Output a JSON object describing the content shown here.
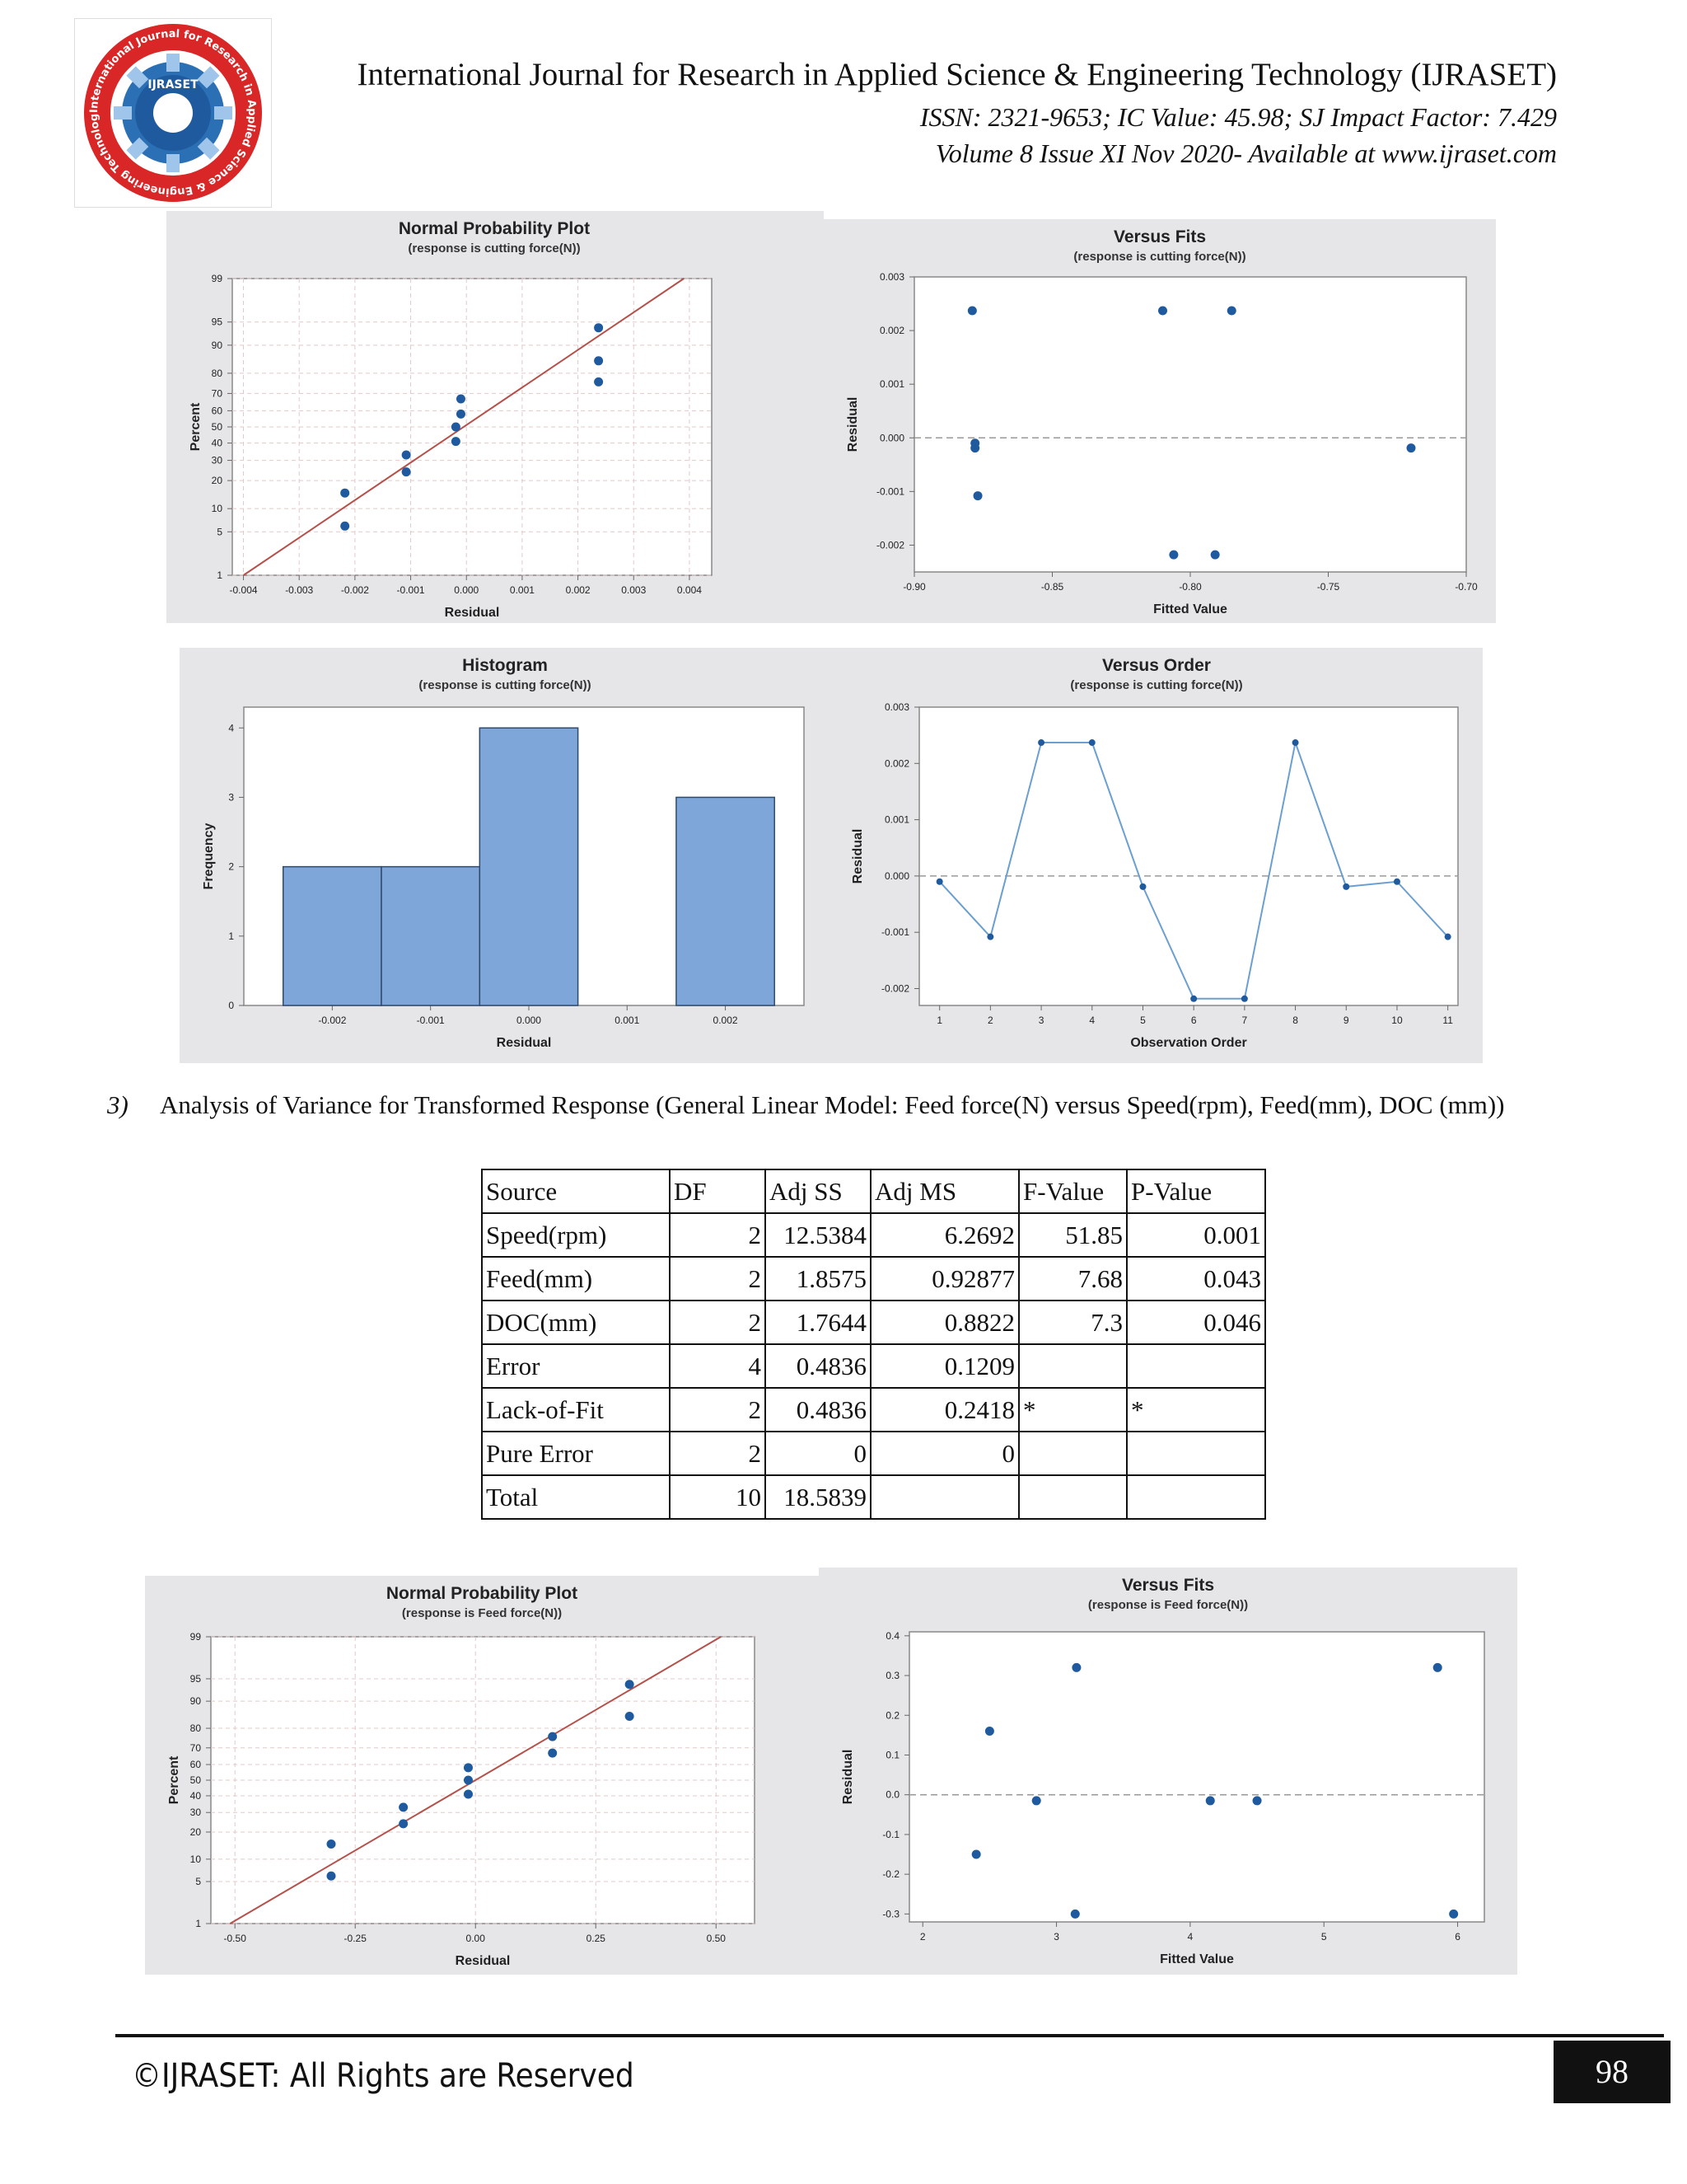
{
  "header": {
    "journal_title": "International Journal for Research in Applied Science & Engineering Technology (IJRASET)",
    "issn_line": "ISSN: 2321-9653; IC Value: 45.98; SJ Impact Factor: 7.429",
    "volume_line": "Volume 8 Issue XI Nov 2020- Available at www.ijraset.com",
    "logo_icon": "ijraset-seal-icon",
    "logo_outer_text": "International Journal for Research in Applied Science & Engineering Technology",
    "logo_inner_text": "IJRASET"
  },
  "section": {
    "number": "3)",
    "text": "Analysis of Variance for Transformed Response (General Linear Model: Feed force(N) versus Speed(rpm), Feed(mm), DOC (mm))"
  },
  "anova_table": {
    "headers": [
      "Source",
      "DF",
      "Adj SS",
      "Adj MS",
      "F-Value",
      "P-Value"
    ],
    "rows": [
      [
        "Speed(rpm)",
        "2",
        "12.5384",
        "6.2692",
        "51.85",
        "0.001"
      ],
      [
        "Feed(mm)",
        "2",
        "1.8575",
        "0.92877",
        "7.68",
        "0.043"
      ],
      [
        "DOC(mm)",
        "2",
        "1.7644",
        "0.8822",
        "7.3",
        "0.046"
      ],
      [
        "Error",
        "4",
        "0.4836",
        "0.1209",
        "",
        ""
      ],
      [
        "Lack-of-Fit",
        "2",
        "0.4836",
        "0.2418",
        "*",
        "*"
      ],
      [
        "Pure Error",
        "2",
        "0",
        "0",
        "",
        ""
      ],
      [
        "Total",
        "10",
        "18.5839",
        "",
        "",
        ""
      ]
    ]
  },
  "footer": {
    "copyright": "©IJRASET: All Rights are Reserved",
    "page_number": "98"
  },
  "colors": {
    "panel_bg": "#e6e6e9",
    "point": "#1f5a9e",
    "fit_line": "#b5504a",
    "bar_fill": "#7ea6d9",
    "order_line": "#6b9fd0"
  },
  "chart_data": [
    {
      "id": "npp1",
      "type": "scatter",
      "title": "Normal Probability Plot",
      "subtitle": "(response is cutting force(N))",
      "xlabel": "Residual",
      "ylabel": "Percent",
      "xlim": [
        -0.0042,
        0.0044
      ],
      "ylim_percent": [
        1,
        99
      ],
      "scale": "normal-probability",
      "xticks": [
        -0.004,
        -0.003,
        -0.002,
        -0.001,
        0.0,
        0.001,
        0.002,
        0.003,
        0.004
      ],
      "xtick_labels": [
        "-0.004",
        "-0.003",
        "-0.002",
        "-0.001",
        "0.000",
        "0.001",
        "0.002",
        "0.003",
        "0.004"
      ],
      "yticks": [
        1,
        5,
        10,
        20,
        30,
        40,
        50,
        60,
        70,
        80,
        90,
        95,
        99
      ],
      "ytick_labels": [
        "1",
        "5",
        "10",
        "20",
        "30",
        "40",
        "50",
        "60",
        "70",
        "80",
        "90",
        "95",
        "99"
      ],
      "points": [
        {
          "x": -0.00218,
          "y": 6
        },
        {
          "x": -0.00218,
          "y": 15
        },
        {
          "x": -0.00108,
          "y": 24
        },
        {
          "x": -0.00108,
          "y": 33
        },
        {
          "x": -0.00019,
          "y": 41
        },
        {
          "x": -0.00019,
          "y": 50
        },
        {
          "x": -0.0001,
          "y": 58
        },
        {
          "x": -0.0001,
          "y": 67
        },
        {
          "x": 0.00237,
          "y": 76
        },
        {
          "x": 0.00237,
          "y": 85
        },
        {
          "x": 0.00237,
          "y": 94
        }
      ],
      "fit_line": {
        "x0": -0.004,
        "y0": 1,
        "x1": 0.0039,
        "y1": 99
      }
    },
    {
      "id": "fits1",
      "type": "scatter",
      "title": "Versus Fits",
      "subtitle": "(response is cutting force(N))",
      "xlabel": "Fitted Value",
      "ylabel": "Residual",
      "xlim": [
        -0.9,
        -0.7
      ],
      "ylim": [
        -0.0025,
        0.003
      ],
      "xticks": [
        -0.9,
        -0.85,
        -0.8,
        -0.75,
        -0.7
      ],
      "xtick_labels": [
        "-0.90",
        "-0.85",
        "-0.80",
        "-0.75",
        "-0.70"
      ],
      "yticks": [
        -0.002,
        -0.001,
        0.0,
        0.001,
        0.002,
        0.003
      ],
      "ytick_labels": [
        "-0.002",
        "-0.001",
        "0.000",
        "0.001",
        "0.002",
        "0.003"
      ],
      "ref_line_y": 0,
      "points": [
        {
          "x": -0.879,
          "y": 0.00237
        },
        {
          "x": -0.878,
          "y": -0.0001
        },
        {
          "x": -0.878,
          "y": -0.00019
        },
        {
          "x": -0.877,
          "y": -0.00108
        },
        {
          "x": -0.81,
          "y": 0.00237
        },
        {
          "x": -0.806,
          "y": -0.00218
        },
        {
          "x": -0.791,
          "y": -0.00218
        },
        {
          "x": -0.785,
          "y": 0.00237
        },
        {
          "x": -0.72,
          "y": -0.00019
        }
      ]
    },
    {
      "id": "hist1",
      "type": "bar",
      "title": "Histogram",
      "subtitle": "(response is cutting force(N))",
      "xlabel": "Residual",
      "ylabel": "Frequency",
      "xlim": [
        -0.0029,
        0.0028
      ],
      "ylim": [
        0,
        4.3
      ],
      "xticks": [
        -0.002,
        -0.001,
        0.0,
        0.001,
        0.002
      ],
      "xtick_labels": [
        "-0.002",
        "-0.001",
        "0.000",
        "0.001",
        "0.002"
      ],
      "yticks": [
        0,
        1,
        2,
        3,
        4
      ],
      "ytick_labels": [
        "0",
        "1",
        "2",
        "3",
        "4"
      ],
      "bins": [
        {
          "from": -0.0025,
          "to": -0.0015,
          "count": 2
        },
        {
          "from": -0.0015,
          "to": -0.0005,
          "count": 2
        },
        {
          "from": -0.0005,
          "to": 0.0005,
          "count": 4
        },
        {
          "from": 0.0005,
          "to": 0.0015,
          "count": 0
        },
        {
          "from": 0.0015,
          "to": 0.0025,
          "count": 3
        }
      ]
    },
    {
      "id": "order1",
      "type": "line",
      "title": "Versus Order",
      "subtitle": "(response is cutting force(N))",
      "xlabel": "Observation Order",
      "ylabel": "Residual",
      "xlim": [
        0.6,
        11.2
      ],
      "ylim": [
        -0.0023,
        0.003
      ],
      "xticks": [
        1,
        2,
        3,
        4,
        5,
        6,
        7,
        8,
        9,
        10,
        11
      ],
      "xtick_labels": [
        "1",
        "2",
        "3",
        "4",
        "5",
        "6",
        "7",
        "8",
        "9",
        "10",
        "11"
      ],
      "yticks": [
        -0.002,
        -0.001,
        0.0,
        0.001,
        0.002,
        0.003
      ],
      "ytick_labels": [
        "-0.002",
        "-0.001",
        "0.000",
        "0.001",
        "0.002",
        "0.003"
      ],
      "ref_line_y": 0,
      "x": [
        1,
        2,
        3,
        4,
        5,
        6,
        7,
        8,
        9,
        10,
        11
      ],
      "values": [
        -0.0001,
        -0.00108,
        0.00237,
        0.00237,
        -0.00019,
        -0.00218,
        -0.00218,
        0.00237,
        -0.00019,
        -0.0001,
        -0.00108
      ]
    },
    {
      "id": "npp2",
      "type": "scatter",
      "title": "Normal Probability Plot",
      "subtitle": "(response is Feed force(N))",
      "xlabel": "Residual",
      "ylabel": "Percent",
      "xlim": [
        -0.55,
        0.58
      ],
      "ylim_percent": [
        1,
        99
      ],
      "scale": "normal-probability",
      "xticks": [
        -0.5,
        -0.25,
        0.0,
        0.25,
        0.5
      ],
      "xtick_labels": [
        "-0.50",
        "-0.25",
        "0.00",
        "0.25",
        "0.50"
      ],
      "yticks": [
        1,
        5,
        10,
        20,
        30,
        40,
        50,
        60,
        70,
        80,
        90,
        95,
        99
      ],
      "ytick_labels": [
        "1",
        "5",
        "10",
        "20",
        "30",
        "40",
        "50",
        "60",
        "70",
        "80",
        "90",
        "95",
        "99"
      ],
      "points": [
        {
          "x": -0.3,
          "y": 6
        },
        {
          "x": -0.3,
          "y": 15
        },
        {
          "x": -0.15,
          "y": 24
        },
        {
          "x": -0.15,
          "y": 33
        },
        {
          "x": -0.015,
          "y": 41
        },
        {
          "x": -0.015,
          "y": 50
        },
        {
          "x": -0.015,
          "y": 58
        },
        {
          "x": 0.16,
          "y": 67
        },
        {
          "x": 0.16,
          "y": 76
        },
        {
          "x": 0.32,
          "y": 85
        },
        {
          "x": 0.32,
          "y": 94
        }
      ],
      "fit_line": {
        "x0": -0.51,
        "y0": 1,
        "x1": 0.51,
        "y1": 99
      }
    },
    {
      "id": "fits2",
      "type": "scatter",
      "title": "Versus Fits",
      "subtitle": "(response is Feed force(N))",
      "xlabel": "Fitted Value",
      "ylabel": "Residual",
      "xlim": [
        1.9,
        6.2
      ],
      "ylim": [
        -0.32,
        0.41
      ],
      "xticks": [
        2,
        3,
        4,
        5,
        6
      ],
      "xtick_labels": [
        "2",
        "3",
        "4",
        "5",
        "6"
      ],
      "yticks": [
        -0.3,
        -0.2,
        -0.1,
        0.0,
        0.1,
        0.2,
        0.3,
        0.4
      ],
      "ytick_labels": [
        "-0.3",
        "-0.2",
        "-0.1",
        "0.0",
        "0.1",
        "0.2",
        "0.3",
        "0.4"
      ],
      "ref_line_y": 0,
      "points": [
        {
          "x": 2.4,
          "y": -0.15
        },
        {
          "x": 2.5,
          "y": 0.16
        },
        {
          "x": 2.85,
          "y": -0.015
        },
        {
          "x": 3.15,
          "y": 0.32
        },
        {
          "x": 3.14,
          "y": -0.3
        },
        {
          "x": 4.15,
          "y": -0.015
        },
        {
          "x": 4.5,
          "y": -0.015
        },
        {
          "x": 5.85,
          "y": 0.32
        },
        {
          "x": 5.97,
          "y": -0.3
        }
      ]
    }
  ]
}
